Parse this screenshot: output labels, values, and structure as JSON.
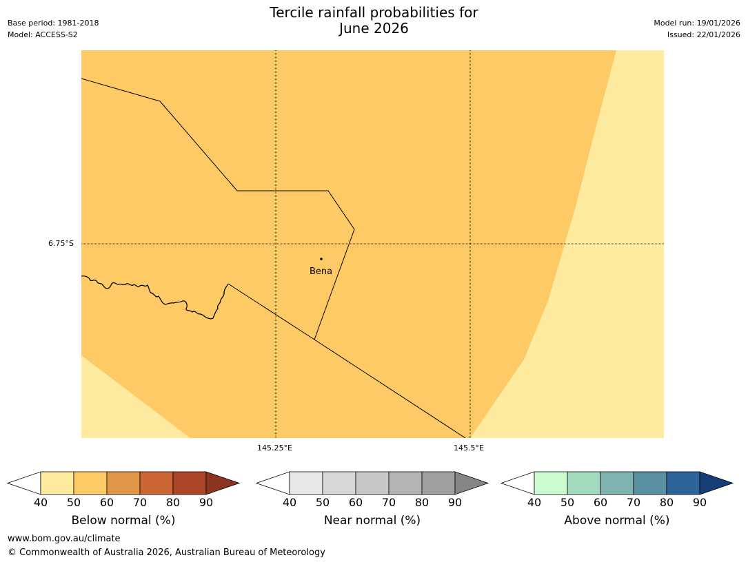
{
  "title": {
    "line1": "Tercile rainfall probabilities for",
    "line2": "June 2026"
  },
  "meta": {
    "base_period": "Base period: 1981-2018",
    "model": "Model: ACCESS-S2",
    "model_run": "Model run: 19/01/2026",
    "issued": "Issued: 22/01/2026"
  },
  "map": {
    "lat_label": "6.75°S",
    "lon_labels": [
      "145.25°E",
      "145.5°E"
    ],
    "place": "Bena",
    "colors": {
      "band_50_60": "#fdca66",
      "band_40_50": "#feeba0",
      "lines": "#000000"
    }
  },
  "colorbars": [
    {
      "label": "Below normal (%)",
      "ticks": [
        "40",
        "50",
        "60",
        "70",
        "80",
        "90"
      ],
      "colors": [
        "#ffffff",
        "#feeba0",
        "#fdca66",
        "#e09748",
        "#cc6635",
        "#ac4528",
        "#8c3322"
      ]
    },
    {
      "label": "Near normal (%)",
      "ticks": [
        "40",
        "50",
        "60",
        "70",
        "80",
        "90"
      ],
      "colors": [
        "#ffffff",
        "#e8e8e8",
        "#d8d8d8",
        "#c8c8c8",
        "#b4b4b4",
        "#a0a0a0",
        "#858585"
      ]
    },
    {
      "label": "Above normal (%)",
      "ticks": [
        "40",
        "50",
        "60",
        "70",
        "80",
        "90"
      ],
      "colors": [
        "#ffffff",
        "#ccfcd0",
        "#a4dabe",
        "#7fb4b0",
        "#5a90a2",
        "#2d6396",
        "#153e77"
      ]
    }
  ],
  "footer": {
    "website": "www.bom.gov.au/climate",
    "copyright": "© Commonwealth of Australia 2026, Australian Bureau of Meteorology"
  }
}
